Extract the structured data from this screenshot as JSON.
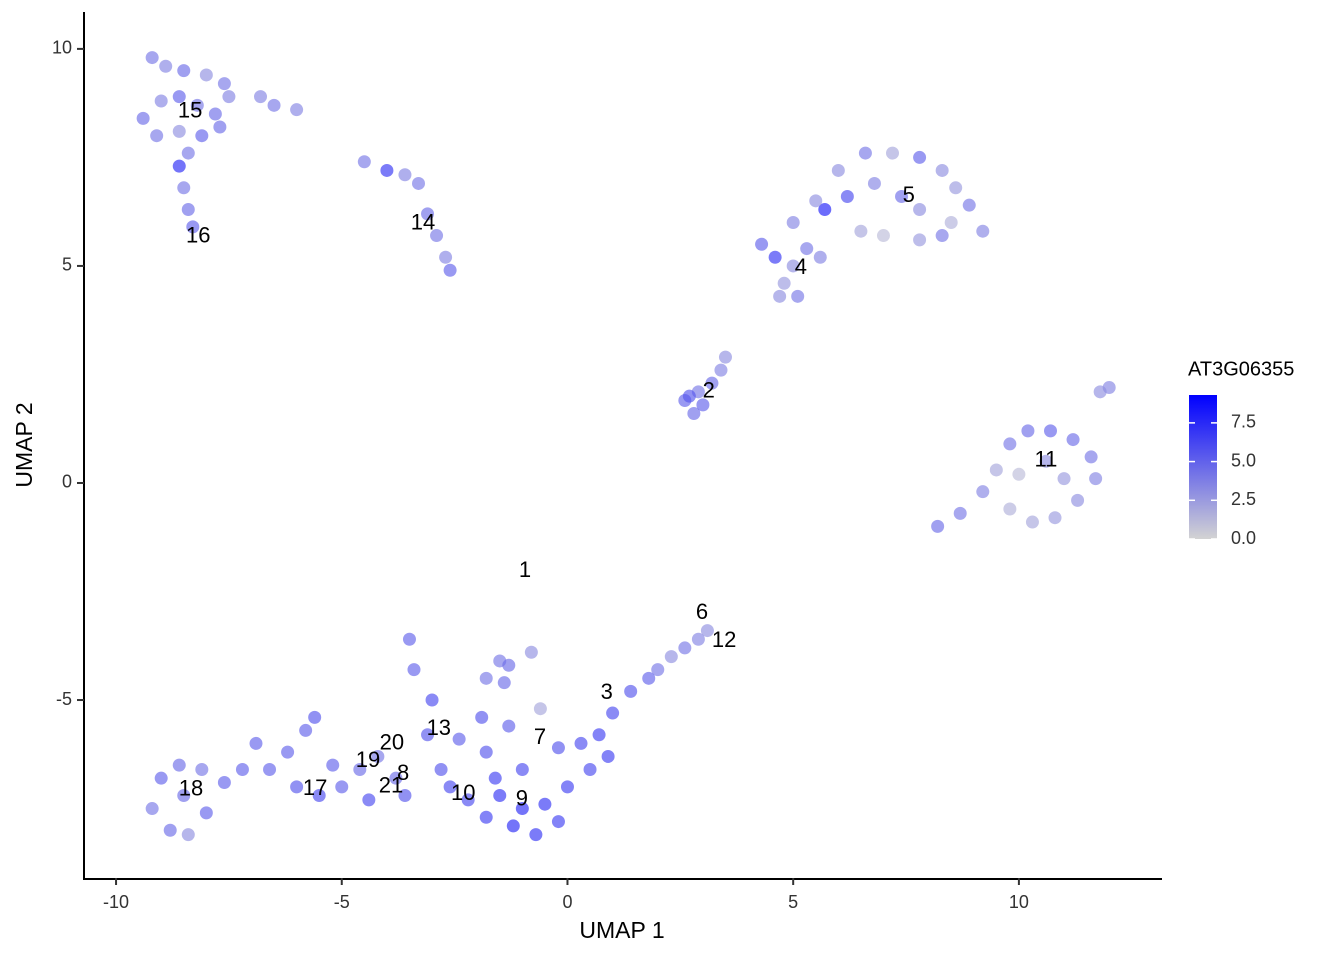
{
  "chart_data": {
    "type": "scatter",
    "xlabel": "UMAP 1",
    "ylabel": "UMAP 2",
    "xlim": [
      -10.71,
      13.17
    ],
    "ylim": [
      -9.1,
      10.85
    ],
    "xticks": [
      -10,
      -5,
      0,
      5,
      10
    ],
    "yticks": [
      -5,
      0,
      5,
      10
    ],
    "x": [
      -9.2,
      -8.9,
      -8.5,
      -8.0,
      -7.6,
      -9.4,
      -9.0,
      -8.6,
      -8.2,
      -7.8,
      -7.5,
      -9.1,
      -8.6,
      -8.1,
      -7.7,
      -8.4,
      -6.8,
      -6.5,
      -6.0,
      -8.6,
      -8.5,
      -8.4,
      -8.3,
      -4.5,
      -4.0,
      -3.6,
      -3.3,
      -3.1,
      -2.9,
      -2.7,
      -2.6,
      6.0,
      6.6,
      7.2,
      7.8,
      8.3,
      8.6,
      8.9,
      9.2,
      8.5,
      7.8,
      7.4,
      6.8,
      6.2,
      5.7,
      6.5,
      7.0,
      7.8,
      8.3,
      5.5,
      5.0,
      4.3,
      4.6,
      5.0,
      5.3,
      4.8,
      5.1,
      4.7,
      5.6,
      2.6,
      2.8,
      2.9,
      3.2,
      3.4,
      3.5,
      3.0,
      2.7,
      8.2,
      8.7,
      9.2,
      9.5,
      9.8,
      10.2,
      10.7,
      11.2,
      11.6,
      11.7,
      11.3,
      10.8,
      10.3,
      9.8,
      10.0,
      10.6,
      11.0,
      12.0,
      11.8,
      -1.5,
      -0.8,
      -1.3,
      -1.8,
      -1.4,
      2.6,
      2.9,
      3.1,
      2.3,
      2.0,
      1.8,
      1.4,
      1.0,
      0.7,
      0.3,
      -0.2,
      0.9,
      0.5,
      0.0,
      -1.5,
      -1.0,
      -0.5,
      -0.2,
      -1.2,
      -0.7,
      -1.8,
      -2.2,
      -2.6,
      -1.6,
      -1.0,
      -1.8,
      -2.8,
      -2.4,
      -3.1,
      -3.0,
      -3.5,
      -3.4,
      -1.9,
      -0.6,
      -1.3,
      -5.6,
      -5.8,
      -6.2,
      -6.0,
      -5.5,
      -5.0,
      -4.6,
      -4.2,
      -3.8,
      -3.6,
      -4.4,
      -5.2,
      -6.6,
      -6.9,
      -9.0,
      -8.6,
      -8.1,
      -7.6,
      -9.2,
      -8.8,
      -8.4,
      -8.0,
      -7.2,
      -8.5
    ],
    "y": [
      9.8,
      9.6,
      9.5,
      9.4,
      9.2,
      8.4,
      8.8,
      8.9,
      8.7,
      8.5,
      8.9,
      8.0,
      8.1,
      8.0,
      8.2,
      7.6,
      8.9,
      8.7,
      8.6,
      7.3,
      6.8,
      6.3,
      5.9,
      7.4,
      7.2,
      7.1,
      6.9,
      6.2,
      5.7,
      5.2,
      4.9,
      7.2,
      7.6,
      7.6,
      7.5,
      7.2,
      6.8,
      6.4,
      5.8,
      6.0,
      6.3,
      6.6,
      6.9,
      6.6,
      6.3,
      5.8,
      5.7,
      5.6,
      5.7,
      6.5,
      6.0,
      5.5,
      5.2,
      5.0,
      5.4,
      4.6,
      4.3,
      4.3,
      5.2,
      1.9,
      1.6,
      2.1,
      2.3,
      2.6,
      2.9,
      1.8,
      2.0,
      -1.0,
      -0.7,
      -0.2,
      0.3,
      0.9,
      1.2,
      1.2,
      1.0,
      0.6,
      0.1,
      -0.4,
      -0.8,
      -0.9,
      -0.6,
      0.2,
      0.5,
      0.1,
      2.2,
      2.1,
      -4.1,
      -3.9,
      -4.2,
      -4.5,
      -4.6,
      -3.8,
      -3.6,
      -3.4,
      -4.0,
      -4.3,
      -4.5,
      -4.8,
      -5.3,
      -5.8,
      -6.0,
      -6.1,
      -6.3,
      -6.6,
      -7.0,
      -7.2,
      -7.5,
      -7.4,
      -7.8,
      -7.9,
      -8.1,
      -7.7,
      -7.3,
      -7.0,
      -6.8,
      -6.6,
      -6.2,
      -6.6,
      -5.9,
      -5.8,
      -5.0,
      -3.6,
      -4.3,
      -5.4,
      -5.2,
      -5.6,
      -5.4,
      -5.7,
      -6.2,
      -7.0,
      -7.2,
      -7.0,
      -6.6,
      -6.3,
      -6.8,
      -7.2,
      -7.3,
      -6.5,
      -6.6,
      -6.0,
      -6.8,
      -6.5,
      -6.6,
      -6.9,
      -7.5,
      -8.0,
      -8.1,
      -7.6,
      -6.6,
      -7.2
    ],
    "values": [
      4,
      3.5,
      4.5,
      3,
      4,
      4.5,
      3.5,
      5,
      4,
      4.5,
      3.5,
      4,
      3,
      5,
      4.5,
      4,
      3.5,
      4,
      3.5,
      7.5,
      4,
      4.5,
      5,
      4,
      7,
      3.5,
      4,
      4.5,
      4,
      3.5,
      5,
      3,
      4,
      2,
      5,
      3,
      2.5,
      4,
      3.5,
      1.5,
      3,
      4.5,
      3.5,
      6,
      8,
      2,
      1,
      2.5,
      4,
      3,
      3.5,
      5,
      7,
      3,
      4,
      2.5,
      4,
      3,
      3.5,
      5,
      4.5,
      4,
      4.5,
      3.5,
      3,
      5,
      5.5,
      4.5,
      4,
      3.5,
      2,
      4,
      4.5,
      5,
      4.5,
      4,
      3.5,
      3,
      2.5,
      2,
      1.5,
      1,
      3,
      2.5,
      3.5,
      3,
      4,
      3,
      4.5,
      4,
      4.5,
      4,
      3.5,
      3,
      3,
      4,
      5,
      5.5,
      6,
      6.5,
      6,
      5.5,
      6.5,
      6,
      6.5,
      7,
      7.5,
      7,
      6.5,
      7.5,
      7,
      6.5,
      6,
      6,
      6.5,
      6,
      5.5,
      5.5,
      5,
      5.5,
      6,
      5,
      5,
      5.5,
      2,
      5,
      5.5,
      5,
      5,
      5.5,
      6,
      5,
      4.5,
      4,
      4.5,
      5.5,
      6,
      5,
      5,
      5,
      5,
      4.5,
      4,
      5,
      4,
      4.5,
      3,
      5,
      5,
      4.5
    ],
    "cluster_labels": [
      {
        "text": "15",
        "x": -8.36,
        "y": 8.55
      },
      {
        "text": "16",
        "x": -8.18,
        "y": 5.67
      },
      {
        "text": "14",
        "x": -3.2,
        "y": 5.97
      },
      {
        "text": "5",
        "x": 7.56,
        "y": 6.61
      },
      {
        "text": "4",
        "x": 5.17,
        "y": 4.95
      },
      {
        "text": "2",
        "x": 3.13,
        "y": 2.1
      },
      {
        "text": "11",
        "x": 10.6,
        "y": 0.51
      },
      {
        "text": "1",
        "x": -0.94,
        "y": -2.03
      },
      {
        "text": "6",
        "x": 2.98,
        "y": -3.0
      },
      {
        "text": "12",
        "x": 3.47,
        "y": -3.64
      },
      {
        "text": "3",
        "x": 0.87,
        "y": -4.84
      },
      {
        "text": "13",
        "x": -2.85,
        "y": -5.67
      },
      {
        "text": "7",
        "x": -0.61,
        "y": -5.88
      },
      {
        "text": "20",
        "x": -3.89,
        "y": -6.01
      },
      {
        "text": "19",
        "x": -4.42,
        "y": -6.41
      },
      {
        "text": "8",
        "x": -3.64,
        "y": -6.71
      },
      {
        "text": "21",
        "x": -3.91,
        "y": -7.0
      },
      {
        "text": "17",
        "x": -5.59,
        "y": -7.05
      },
      {
        "text": "10",
        "x": -2.31,
        "y": -7.17
      },
      {
        "text": "9",
        "x": -1.01,
        "y": -7.3
      },
      {
        "text": "18",
        "x": -8.34,
        "y": -7.07
      }
    ],
    "colorbar": {
      "title": "AT3G06355",
      "low_color": "#d3d3d3",
      "high_color": "#0000ff",
      "lim": [
        0,
        9.3
      ],
      "ticks": [
        {
          "value": 0,
          "label": "0.0"
        },
        {
          "value": 2.5,
          "label": "2.5"
        },
        {
          "value": 5,
          "label": "5.0"
        },
        {
          "value": 7.5,
          "label": "7.5"
        }
      ]
    }
  }
}
